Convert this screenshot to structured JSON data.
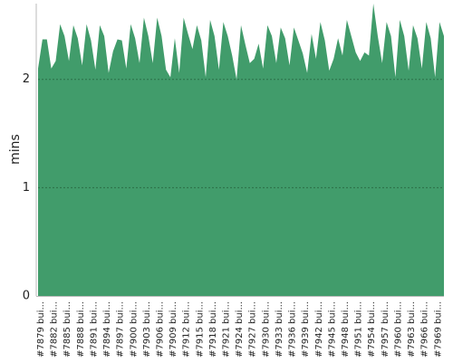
{
  "chart_data": {
    "type": "area",
    "y_label": "mins",
    "color": "#419c6b",
    "grid": true,
    "categories": [
      "#7879 bui...",
      null,
      null,
      "#7882 bui...",
      null,
      null,
      "#7885 bui...",
      null,
      null,
      "#7888 bui...",
      null,
      null,
      "#7891 bui...",
      null,
      null,
      "#7894 bui...",
      null,
      null,
      "#7897 bui...",
      null,
      null,
      "#7900 bui...",
      null,
      null,
      "#7903 bui...",
      null,
      null,
      "#7906 bui...",
      null,
      null,
      "#7909 bui...",
      null,
      null,
      "#7912 bui...",
      null,
      null,
      "#7915 bui...",
      null,
      null,
      "#7918 bui...",
      null,
      null,
      "#7921 bui...",
      null,
      null,
      "#7924 bui...",
      null,
      null,
      "#7927 bui...",
      null,
      null,
      "#7930 bui...",
      null,
      null,
      "#7933 bui...",
      null,
      null,
      "#7936 bui...",
      null,
      null,
      "#7939 bui...",
      null,
      null,
      "#7942 bui...",
      null,
      null,
      "#7945 bui...",
      null,
      null,
      "#7948 bui...",
      null,
      null,
      "#7951 bui...",
      null,
      null,
      "#7954 bui...",
      null,
      null,
      "#7957 bui...",
      null,
      null,
      "#7960 bui...",
      null,
      null,
      "#7963 bui...",
      null,
      null,
      "#7966 bui...",
      null,
      null,
      "#7969 bui...",
      null,
      null
    ],
    "values": [
      2.1,
      2.37,
      2.37,
      2.1,
      2.17,
      2.51,
      2.4,
      2.17,
      2.5,
      2.38,
      2.13,
      2.51,
      2.36,
      2.09,
      2.5,
      2.4,
      2.06,
      2.26,
      2.37,
      2.36,
      2.1,
      2.51,
      2.38,
      2.15,
      2.57,
      2.4,
      2.15,
      2.57,
      2.4,
      2.09,
      2.02,
      2.38,
      2.06,
      2.57,
      2.42,
      2.28,
      2.5,
      2.36,
      2.02,
      2.55,
      2.4,
      2.09,
      2.53,
      2.4,
      2.22,
      2.0,
      2.5,
      2.32,
      2.15,
      2.19,
      2.33,
      2.1,
      2.5,
      2.4,
      2.15,
      2.48,
      2.38,
      2.13,
      2.48,
      2.36,
      2.24,
      2.06,
      2.42,
      2.19,
      2.53,
      2.36,
      2.08,
      2.19,
      2.38,
      2.22,
      2.55,
      2.4,
      2.25,
      2.17,
      2.25,
      2.22,
      2.7,
      2.4,
      2.15,
      2.53,
      2.4,
      2.02,
      2.55,
      2.4,
      2.08,
      2.5,
      2.38,
      2.1,
      2.53,
      2.38,
      2.02,
      2.53,
      2.4
    ],
    "ylim": [
      0,
      2.7
    ],
    "yticks": [
      0,
      1,
      2
    ]
  }
}
